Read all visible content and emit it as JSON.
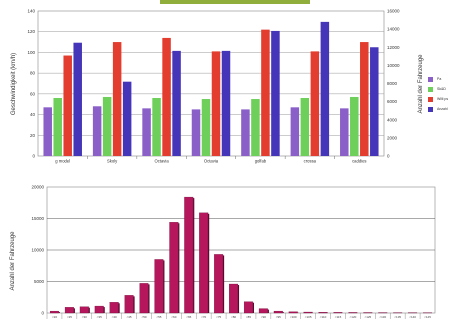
{
  "chart_data": [
    {
      "type": "bar",
      "categories": [
        "g model",
        "Skoly",
        "Octavia",
        "Octavia",
        "golfab",
        "crossa",
        "caddies"
      ],
      "series": [
        {
          "name": "Pa",
          "axis": "left",
          "color": "#8b5fc8",
          "values": [
            47,
            48,
            46,
            45,
            45,
            47,
            46
          ]
        },
        {
          "name": "Sk&D",
          "axis": "left",
          "color": "#6ecf5b",
          "values": [
            56,
            57,
            56,
            55,
            55,
            56,
            57
          ]
        },
        {
          "name": "Willi ps",
          "axis": "left",
          "color": "#e23d2e",
          "values": [
            97,
            110,
            114,
            101,
            122,
            101,
            110
          ]
        },
        {
          "name": "Anzahl",
          "axis": "right",
          "color": "#4535b8",
          "values": [
            12500,
            8200,
            11600,
            11600,
            13800,
            14800,
            12000
          ]
        }
      ],
      "ylabel": "Geschwindigkeit (km/h)",
      "ylabel_right": "Anzahl der Fahrzeuge",
      "ylim": [
        0,
        140
      ],
      "ylim_right": [
        0,
        16000
      ],
      "yticks": [
        "0",
        "20",
        "40",
        "60",
        "80",
        "100",
        "120",
        "140"
      ],
      "yticks_right": [
        "0",
        "2000",
        "4000",
        "6000",
        "8000",
        "10000",
        "12000",
        "14000",
        "16000"
      ],
      "grid": true,
      "legend_position": "right"
    },
    {
      "type": "bar",
      "categories": [
        "<20",
        "<25",
        "<30",
        "<35",
        "<40",
        "<45",
        "<50",
        "<55",
        "<60",
        "<65",
        "<70",
        "<75",
        "<80",
        "<85",
        "<90",
        "<95",
        "<100",
        "<105",
        "<110",
        "<115",
        "<120",
        "<125",
        "<130",
        "<135",
        "<140",
        "<145"
      ],
      "series": [
        {
          "name": "",
          "color": "#b5165c",
          "values": [
            300,
            900,
            1000,
            1100,
            1700,
            2800,
            4700,
            8500,
            14400,
            18400,
            15900,
            9300,
            4600,
            1800,
            700,
            300,
            200,
            150,
            120,
            100,
            90,
            80,
            70,
            60,
            60,
            50
          ]
        }
      ],
      "ylabel": "Anzahl der Fahrzeuge",
      "ylim": [
        0,
        20000
      ],
      "yticks": [
        "0",
        "5000",
        "10000",
        "15000",
        "20000"
      ],
      "grid": true,
      "legend_position": "none"
    }
  ]
}
